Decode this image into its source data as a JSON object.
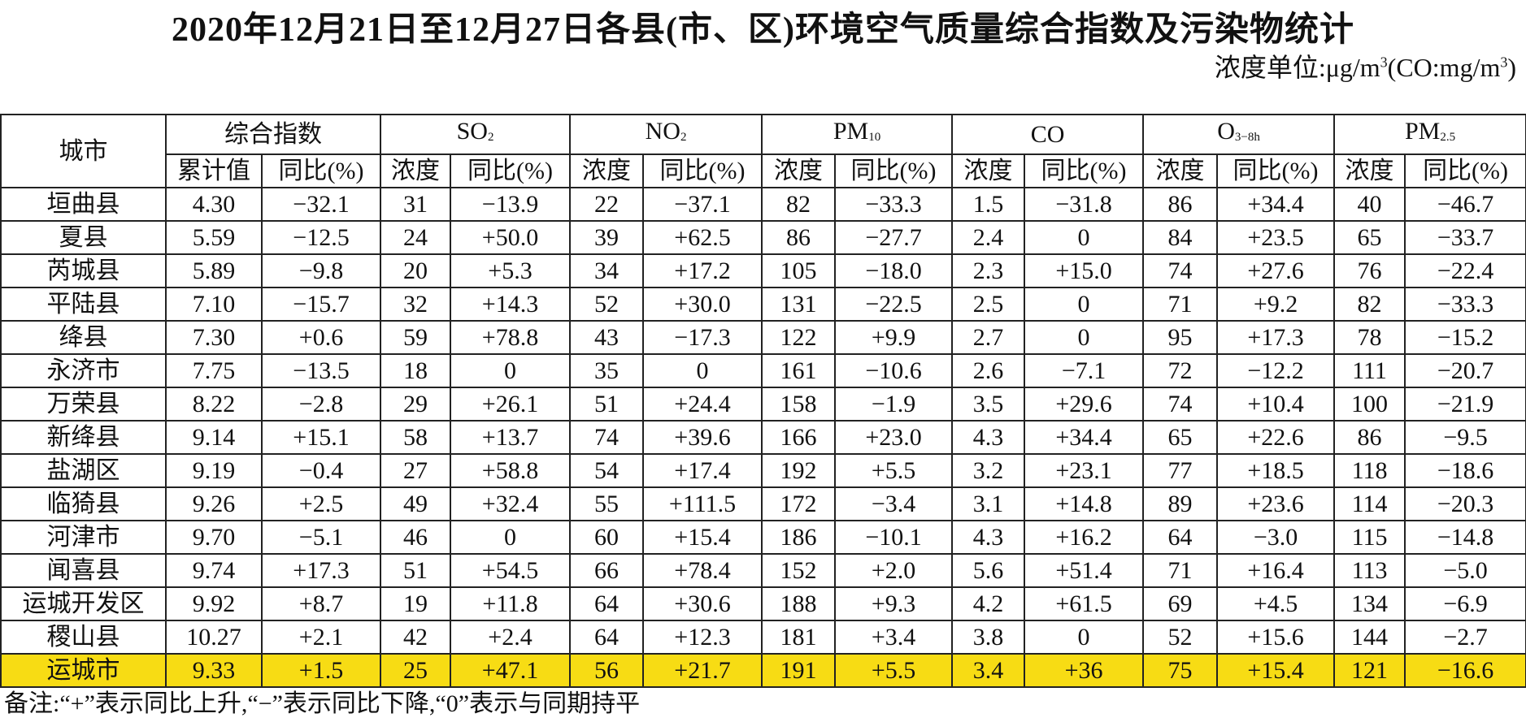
{
  "header": {
    "title": "2020年12月21日至12月27日各县(市、区)环境空气质量综合指数及污染物统计",
    "unit": {
      "prefix": "浓度单位:μg/m",
      "sup1": "3",
      "mid": "(CO:mg/m",
      "sup2": "3",
      "suffix": ")"
    }
  },
  "table": {
    "city_header": "城市",
    "groups": [
      {
        "name": "综合指数",
        "sub": ""
      },
      {
        "name": "SO",
        "sub": "2"
      },
      {
        "name": "NO",
        "sub": "2"
      },
      {
        "name": "PM",
        "sub": "10"
      },
      {
        "name": "CO",
        "sub": ""
      },
      {
        "name": "O",
        "sub": "3−8h"
      },
      {
        "name": "PM",
        "sub": "2.5"
      }
    ],
    "subheaders": [
      "累计值",
      "同比(%)",
      "浓度",
      "同比(%)",
      "浓度",
      "同比(%)",
      "浓度",
      "同比(%)",
      "浓度",
      "同比(%)",
      "浓度",
      "同比(%)",
      "浓度",
      "同比(%)"
    ],
    "rows": [
      [
        "垣曲县",
        "4.30",
        "−32.1",
        "31",
        "−13.9",
        "22",
        "−37.1",
        "82",
        "−33.3",
        "1.5",
        "−31.8",
        "86",
        "+34.4",
        "40",
        "−46.7"
      ],
      [
        "夏县",
        "5.59",
        "−12.5",
        "24",
        "+50.0",
        "39",
        "+62.5",
        "86",
        "−27.7",
        "2.4",
        "0",
        "84",
        "+23.5",
        "65",
        "−33.7"
      ],
      [
        "芮城县",
        "5.89",
        "−9.8",
        "20",
        "+5.3",
        "34",
        "+17.2",
        "105",
        "−18.0",
        "2.3",
        "+15.0",
        "74",
        "+27.6",
        "76",
        "−22.4"
      ],
      [
        "平陆县",
        "7.10",
        "−15.7",
        "32",
        "+14.3",
        "52",
        "+30.0",
        "131",
        "−22.5",
        "2.5",
        "0",
        "71",
        "+9.2",
        "82",
        "−33.3"
      ],
      [
        "绛县",
        "7.30",
        "+0.6",
        "59",
        "+78.8",
        "43",
        "−17.3",
        "122",
        "+9.9",
        "2.7",
        "0",
        "95",
        "+17.3",
        "78",
        "−15.2"
      ],
      [
        "永济市",
        "7.75",
        "−13.5",
        "18",
        "0",
        "35",
        "0",
        "161",
        "−10.6",
        "2.6",
        "−7.1",
        "72",
        "−12.2",
        "111",
        "−20.7"
      ],
      [
        "万荣县",
        "8.22",
        "−2.8",
        "29",
        "+26.1",
        "51",
        "+24.4",
        "158",
        "−1.9",
        "3.5",
        "+29.6",
        "74",
        "+10.4",
        "100",
        "−21.9"
      ],
      [
        "新绛县",
        "9.14",
        "+15.1",
        "58",
        "+13.7",
        "74",
        "+39.6",
        "166",
        "+23.0",
        "4.3",
        "+34.4",
        "65",
        "+22.6",
        "86",
        "−9.5"
      ],
      [
        "盐湖区",
        "9.19",
        "−0.4",
        "27",
        "+58.8",
        "54",
        "+17.4",
        "192",
        "+5.5",
        "3.2",
        "+23.1",
        "77",
        "+18.5",
        "118",
        "−18.6"
      ],
      [
        "临猗县",
        "9.26",
        "+2.5",
        "49",
        "+32.4",
        "55",
        "+111.5",
        "172",
        "−3.4",
        "3.1",
        "+14.8",
        "89",
        "+23.6",
        "114",
        "−20.3"
      ],
      [
        "河津市",
        "9.70",
        "−5.1",
        "46",
        "0",
        "60",
        "+15.4",
        "186",
        "−10.1",
        "4.3",
        "+16.2",
        "64",
        "−3.0",
        "115",
        "−14.8"
      ],
      [
        "闻喜县",
        "9.74",
        "+17.3",
        "51",
        "+54.5",
        "66",
        "+78.4",
        "152",
        "+2.0",
        "5.6",
        "+51.4",
        "71",
        "+16.4",
        "113",
        "−5.0"
      ],
      [
        "运城开发区",
        "9.92",
        "+8.7",
        "19",
        "+11.8",
        "64",
        "+30.6",
        "188",
        "+9.3",
        "4.2",
        "+61.5",
        "69",
        "+4.5",
        "134",
        "−6.9"
      ],
      [
        "稷山县",
        "10.27",
        "+2.1",
        "42",
        "+2.4",
        "64",
        "+12.3",
        "181",
        "+3.4",
        "3.8",
        "0",
        "52",
        "+15.6",
        "144",
        "−2.7"
      ],
      [
        "运城市",
        "9.33",
        "+1.5",
        "25",
        "+47.1",
        "56",
        "+21.7",
        "191",
        "+5.5",
        "3.4",
        "+36",
        "75",
        "+15.4",
        "121",
        "−16.6"
      ]
    ],
    "note": "备注:“+”表示同比上升,“−”表示同比下降,“0”表示与同期持平"
  }
}
